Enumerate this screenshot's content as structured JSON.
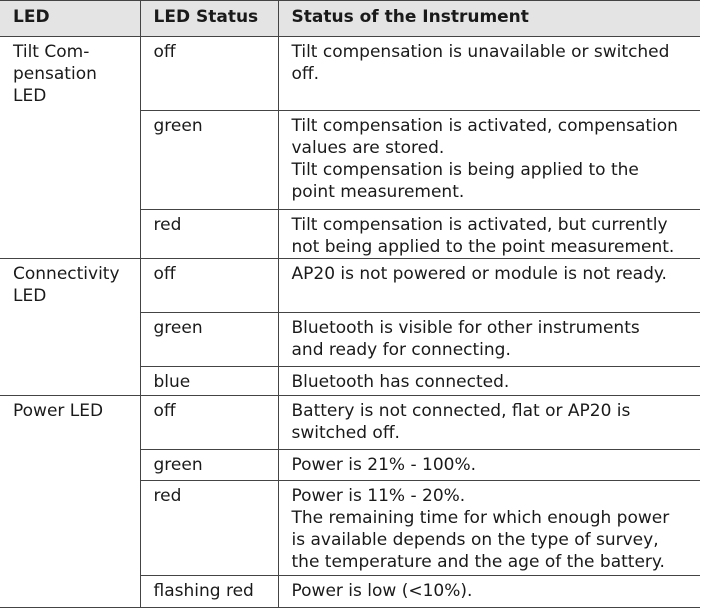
{
  "table": {
    "headers": [
      "LED",
      "LED Status",
      "Status of the Instrument"
    ],
    "groups": [
      {
        "led": "Tilt Com-\npensation\nLED",
        "rows": [
          {
            "status": "off",
            "description": "Tilt compensation is unavailable or switched\noff."
          },
          {
            "status": "green",
            "description": "Tilt compensation is activated, compensation\nvalues are stored.\nTilt compensation is being applied to the\npoint measurement."
          },
          {
            "status": "red",
            "description": "Tilt compensation is activated, but currently\nnot being applied to the point measurement."
          }
        ]
      },
      {
        "led": "Connectivity\nLED",
        "rows": [
          {
            "status": "off",
            "description": "AP20 is not powered or module is not ready."
          },
          {
            "status": "green",
            "description": "Bluetooth is visible for other instruments\nand ready for connecting."
          },
          {
            "status": "blue",
            "description": "Bluetooth has connected."
          }
        ]
      },
      {
        "led": "Power LED",
        "rows": [
          {
            "status": "off",
            "description": "Battery is not connected, flat or AP20 is\nswitched off."
          },
          {
            "status": "green",
            "description": "Power is 21% - 100%."
          },
          {
            "status": "red",
            "description": "Power is 11% - 20%.\nThe remaining time for which enough power\nis available depends on the type of survey,\nthe temperature and the age of the battery."
          },
          {
            "status": "flashing red",
            "description": "Power is low (<10%)."
          }
        ]
      }
    ]
  }
}
